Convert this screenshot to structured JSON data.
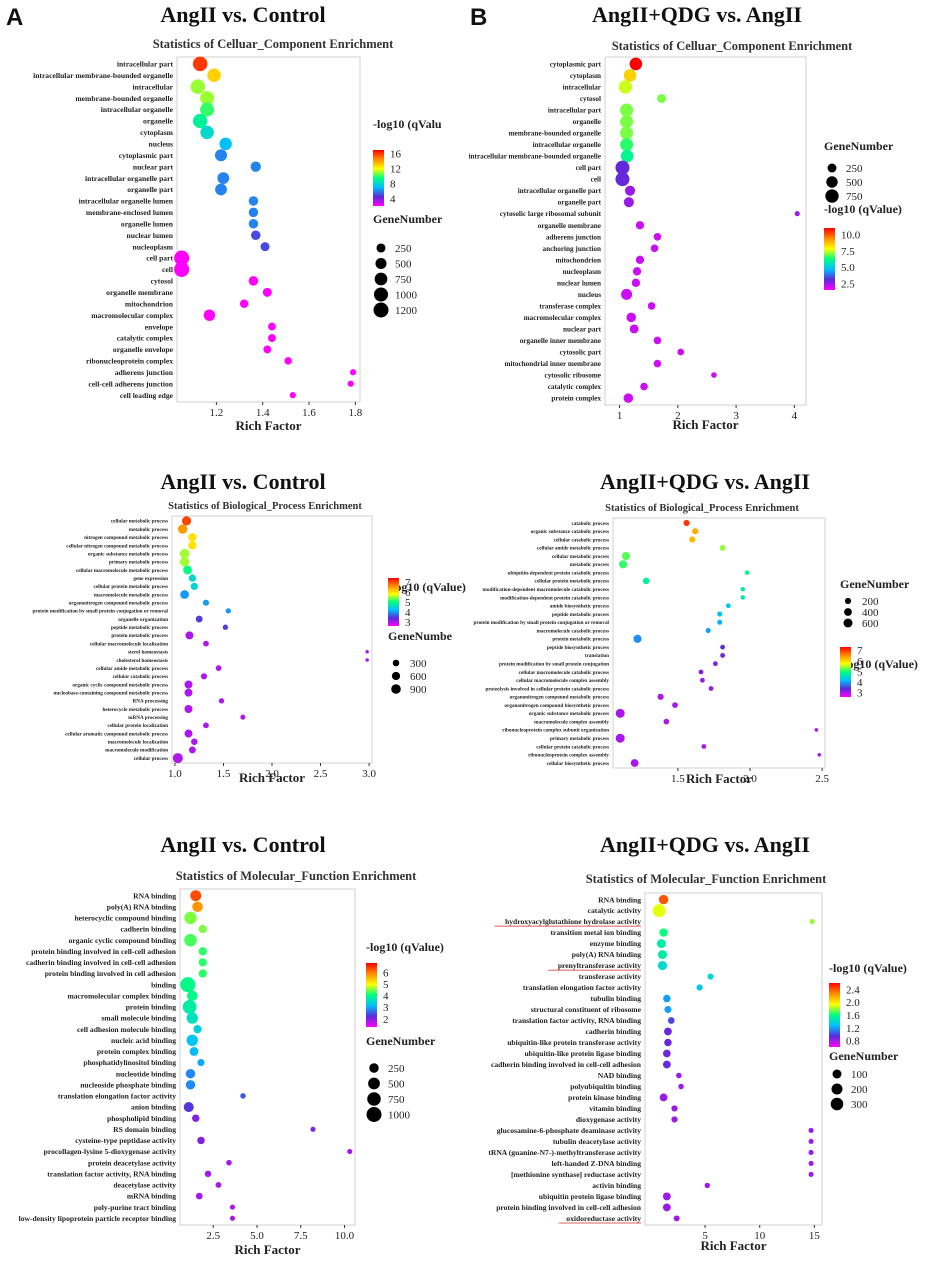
{
  "panel_letters": [
    "A",
    "B"
  ],
  "legend_labels": {
    "qvalue": "-log10 (qValue)",
    "qvalue_clipped": "-log10 (qValu",
    "genenumber": "GeneNumber",
    "genenumber_clipped": "GeneNumbe",
    "genenumber_clipped2": "GeneNumber"
  },
  "colors": {
    "scale": [
      "#ff0000",
      "#ff8c00",
      "#ffff00",
      "#00ff7f",
      "#00bfff",
      "#5a2bd8",
      "#ff00ff"
    ]
  },
  "chart_data": [
    {
      "id": "a1",
      "type": "scatter",
      "main_title": "AngII vs. Control",
      "title": "Statistics of Celluar_Component Enrichment",
      "xlabel": "Rich Factor",
      "xlim": [
        1.03,
        1.82
      ],
      "xticks": [
        1.2,
        1.4,
        1.6,
        1.8
      ],
      "xtick_labels": [
        "1.2",
        "1.4",
        "1.6",
        "1.8"
      ],
      "color_range": [
        2,
        17
      ],
      "color_ticks": [
        "16",
        "12",
        "8",
        "4"
      ],
      "color_tick_values": [
        16,
        12,
        8,
        4
      ],
      "size_labels": [
        "250",
        "500",
        "750",
        "1000",
        "1200"
      ],
      "size_values": [
        250,
        500,
        750,
        1000,
        1200
      ],
      "terms": [
        "intracellular part",
        "intracellular membrane-bounded organelle",
        "intracellular",
        "membrane-bounded organelle",
        "intracellular organelle",
        "organelle",
        "cytoplasm",
        "nucleus",
        "cytoplasmic part",
        "nuclear part",
        "intracellular organelle part",
        "organelle part",
        "intracellular organelle lumen",
        "membrane-enclosed lumen",
        "organelle lumen",
        "nuclear lumen",
        "nucleoplasm",
        "cell part",
        "cell",
        "cytosol",
        "organelle membrane",
        "mitochondrion",
        "macromolecular complex",
        "envelope",
        "catalytic complex",
        "organelle envelope",
        "ribonucleoprotein complex",
        "adherens junction",
        "cell-cell adherens junction",
        "cell leading edge"
      ],
      "x": [
        1.13,
        1.19,
        1.12,
        1.16,
        1.16,
        1.13,
        1.16,
        1.24,
        1.22,
        1.37,
        1.23,
        1.22,
        1.36,
        1.36,
        1.36,
        1.37,
        1.41,
        1.05,
        1.05,
        1.36,
        1.42,
        1.32,
        1.17,
        1.44,
        1.44,
        1.42,
        1.51,
        1.79,
        1.78,
        1.53
      ],
      "gene": [
        1100,
        900,
        1100,
        1000,
        1000,
        1050,
        900,
        700,
        650,
        400,
        600,
        600,
        300,
        300,
        300,
        300,
        250,
        1200,
        1200,
        300,
        250,
        200,
        550,
        150,
        150,
        150,
        120,
        50,
        50,
        50
      ],
      "q": [
        16,
        13,
        11,
        11,
        10,
        9,
        8,
        7,
        6,
        6,
        6,
        6,
        6,
        6,
        6,
        5,
        5,
        2,
        2,
        2,
        2,
        2,
        2,
        2,
        2,
        2,
        2,
        2,
        2,
        2
      ]
    },
    {
      "id": "b1",
      "type": "scatter",
      "main_title": "AngII+QDG vs. AngII",
      "title": "Statistics of Celluar_Component Enrichment",
      "xlabel": "Rich Factor",
      "xlim": [
        0.75,
        4.2
      ],
      "xticks": [
        1,
        2,
        3,
        4
      ],
      "xtick_labels": [
        "1",
        "2",
        "3",
        "4"
      ],
      "color_range": [
        1.5,
        11
      ],
      "color_ticks": [
        "10.0",
        "7.5",
        "5.0",
        "2.5"
      ],
      "color_tick_values": [
        10,
        7.5,
        5,
        2.5
      ],
      "size_labels": [
        "250",
        "500",
        "750"
      ],
      "size_values": [
        250,
        500,
        750
      ],
      "terms": [
        "cytoplasmic part",
        "cytoplasm",
        "intracellular",
        "cytosol",
        "intracellular part",
        "organelle",
        "membrane-bounded organelle",
        "intracellular organelle",
        "intracellular membrane-bounded organelle",
        "cell part",
        "cell",
        "intracellular organelle part",
        "organelle part",
        "cytosolic large ribosomal subunit",
        "organelle membrane",
        "adherens junction",
        "anchoring junction",
        "mitochondrion",
        "nucleoplasm",
        "nuclear lumen",
        "nucleus",
        "transferase complex",
        "macromolecular complex",
        "nuclear part",
        "organelle inner membrane",
        "cytosolic part",
        "mitochondrial inner membrane",
        "cytosolic ribosome",
        "catalytic complex",
        "protein complex"
      ],
      "x": [
        1.28,
        1.18,
        1.1,
        1.72,
        1.12,
        1.12,
        1.12,
        1.12,
        1.13,
        1.05,
        1.05,
        1.18,
        1.16,
        4.05,
        1.35,
        1.65,
        1.6,
        1.35,
        1.3,
        1.28,
        1.12,
        1.55,
        1.2,
        1.25,
        1.65,
        2.05,
        1.65,
        2.62,
        1.42,
        1.15
      ],
      "gene": [
        650,
        650,
        750,
        250,
        700,
        700,
        700,
        700,
        650,
        850,
        850,
        350,
        350,
        30,
        200,
        150,
        150,
        200,
        200,
        200,
        450,
        150,
        300,
        250,
        150,
        100,
        150,
        50,
        150,
        300
      ],
      "q": [
        11,
        8.5,
        7.5,
        7,
        7,
        7,
        7,
        6.5,
        6,
        3,
        3,
        2.5,
        2.5,
        2.5,
        2,
        2,
        2,
        2,
        2,
        2,
        2,
        2,
        2,
        2,
        2,
        2,
        2,
        2,
        2,
        2
      ]
    },
    {
      "id": "a2",
      "type": "scatter",
      "main_title": "AngII vs. Control",
      "title": "Statistics of Biological_Process Enrichment",
      "xlabel": "Rich Factor",
      "xlim": [
        0.97,
        3.03
      ],
      "xticks": [
        1.0,
        1.5,
        2.0,
        2.5,
        3.0
      ],
      "xtick_labels": [
        "1.0",
        "1.5",
        "2.0",
        "2.5",
        "3.0"
      ],
      "color_range": [
        2.6,
        7.4
      ],
      "color_ticks": [
        "7",
        "6",
        "5",
        "4",
        "3"
      ],
      "color_tick_values": [
        7,
        6,
        5,
        4,
        3
      ],
      "size_labels": [
        "300",
        "600",
        "900"
      ],
      "size_values": [
        300,
        600,
        900
      ],
      "terms": [
        "cellular metabolic process",
        "metabolic process",
        "nitrogen compound metabolic process",
        "cellular nitrogen compound metabolic process",
        "organic substance metabolic process",
        "primary metabolic process",
        "cellular macromolecule metabolic process",
        "gene expression",
        "cellular protein metabolic process",
        "macromolecule metabolic process",
        "organonitrogen compound metabolic process",
        "protein modification by small protein conjugation or removal",
        "organelle organization",
        "peptide metabolic process",
        "protein metabolic process",
        "cellular macromolecule localization",
        "sterol homeostasis",
        "cholesterol homeostasis",
        "cellular amide metabolic process",
        "cellular catabolic process",
        "organic cyclic compound metabolic process",
        "nucleobase-containing compound metabolic process",
        "RNA processing",
        "heterocycle metabolic process",
        "mRNA processing",
        "cellular protein localization",
        "cellular aromatic compound metabolic process",
        "macromolecule localization",
        "macromolecule modification",
        "cellular process"
      ],
      "x": [
        1.12,
        1.08,
        1.18,
        1.18,
        1.1,
        1.1,
        1.13,
        1.18,
        1.2,
        1.1,
        1.32,
        1.55,
        1.25,
        1.52,
        1.15,
        1.32,
        2.98,
        2.98,
        1.45,
        1.3,
        1.14,
        1.14,
        1.48,
        1.14,
        1.7,
        1.32,
        1.14,
        1.2,
        1.18,
        1.03
      ],
      "gene": [
        800,
        850,
        600,
        600,
        850,
        850,
        700,
        400,
        400,
        700,
        250,
        150,
        350,
        150,
        550,
        200,
        20,
        20,
        200,
        250,
        550,
        550,
        150,
        550,
        120,
        200,
        550,
        300,
        350,
        1000
      ],
      "q": [
        7,
        6.5,
        6,
        6,
        5.5,
        5.5,
        5,
        4.5,
        4.5,
        4,
        4,
        4,
        3.5,
        3.5,
        3,
        3,
        3,
        3,
        3,
        3,
        3,
        3,
        3,
        3,
        3,
        3,
        3,
        3,
        3,
        3
      ]
    },
    {
      "id": "b2",
      "type": "scatter",
      "main_title": "AngII+QDG vs. AngII",
      "title": "Statistics of Biological_Process Enrichment",
      "xlabel": "Rich Factor",
      "xlim": [
        1.05,
        2.52
      ],
      "xticks": [
        1.5,
        2.0,
        2.5
      ],
      "xtick_labels": [
        "1.5",
        "2.0",
        "2.5"
      ],
      "color_range": [
        2.6,
        7.3
      ],
      "color_ticks": [
        "7",
        "6",
        "5",
        "4",
        "3"
      ],
      "color_tick_values": [
        7,
        6,
        5,
        4,
        3
      ],
      "size_labels": [
        "200",
        "400",
        "600"
      ],
      "size_values": [
        200,
        400,
        600
      ],
      "terms": [
        "catabolic process",
        "organic substance catabolic process",
        "cellular catabolic process",
        "cellular amide metabolic process",
        "cellular metabolic process",
        "metabolic process",
        "ubiquitin-dependent protein catabolic process",
        "cellular protein metabolic process",
        "modification-dependent macromolecule catabolic process",
        "modification-dependent protein catabolic process",
        "amide biosynthetic process",
        "peptide metabolic process",
        "protein modification by small protein conjugation or removal",
        "macromolecule catabolic process",
        "protein metabolic process",
        "peptide biosynthetic process",
        "translation",
        "protein modification by small protein conjugation",
        "cellular macromolecule catabolic process",
        "cellular macromolecule complex assembly",
        "proteolysis involved in cellular protein catabolic process",
        "organonitrogen compound metabolic process",
        "organonitrogen compound biosynthetic process",
        "organic substance metabolic process",
        "macromolecule complex assembly",
        "ribonucleoprotein complex subunit organization",
        "primary metabolic process",
        "cellular protein catabolic process",
        "ribonucleoprotein complex assembly",
        "cellular biosynthetic process"
      ],
      "x": [
        1.56,
        1.62,
        1.6,
        1.81,
        1.14,
        1.12,
        1.98,
        1.28,
        1.95,
        1.95,
        1.85,
        1.79,
        1.79,
        1.71,
        1.22,
        1.81,
        1.81,
        1.76,
        1.66,
        1.67,
        1.73,
        1.38,
        1.48,
        1.1,
        1.42,
        2.46,
        1.1,
        1.68,
        2.48,
        1.2
      ],
      "gene": [
        200,
        200,
        200,
        150,
        450,
        450,
        60,
        250,
        60,
        60,
        80,
        100,
        100,
        100,
        450,
        80,
        80,
        80,
        80,
        80,
        80,
        200,
        150,
        600,
        150,
        20,
        600,
        80,
        20,
        400
      ],
      "q": [
        7,
        6.3,
        6.2,
        5.4,
        5.2,
        5.1,
        4.9,
        4.8,
        4.7,
        4.6,
        4.3,
        4.2,
        4.1,
        4,
        3.9,
        3.4,
        3.3,
        3.2,
        3.2,
        3.1,
        3.1,
        3,
        3,
        3,
        3,
        3,
        3,
        3,
        3,
        3
      ]
    },
    {
      "id": "a3",
      "type": "scatter",
      "main_title": "AngII vs. Control",
      "title": "Statistics of Molecular_Function Enrichment",
      "xlabel": "Rich Factor",
      "xlim": [
        0.6,
        10.6
      ],
      "xticks": [
        2.5,
        5.0,
        7.5,
        10.0
      ],
      "xtick_labels": [
        "2.5",
        "5.0",
        "7.5",
        "10.0"
      ],
      "color_range": [
        1.3,
        6.8
      ],
      "color_ticks": [
        "6",
        "5",
        "4",
        "3",
        "2"
      ],
      "color_tick_values": [
        6,
        5,
        4,
        3,
        2
      ],
      "size_labels": [
        "250",
        "500",
        "750",
        "1000"
      ],
      "size_values": [
        250,
        500,
        750,
        1000
      ],
      "terms": [
        "RNA binding",
        "poly(A) RNA binding",
        "heterocyclic compound binding",
        "cadherin binding",
        "organic cyclic compound binding",
        "protein binding involved in cell-cell adhesion",
        "cadherin binding involved in cell-cell adhesion",
        "protein binding involved in cell adhesion",
        "binding",
        "macromolecular complex binding",
        "protein binding",
        "small molecule binding",
        "cell adhesion molecule binding",
        "nucleic acid binding",
        "protein complex binding",
        "phosphatidylinositol binding",
        "nucleotide binding",
        "nucleoside phosphate binding",
        "translation elongation factor activity",
        "anion binding",
        "phospholipid binding",
        "RS domain binding",
        "cysteine-type peptidase activity",
        "procollagen-lysine 5-dioxygenase activity",
        "protein deacetylase activity",
        "translation factor activity, RNA binding",
        "deacetylase activity",
        "mRNA binding",
        "poly-purine tract binding",
        "low-density lipoprotein particle receptor binding"
      ],
      "x": [
        1.5,
        1.6,
        1.2,
        1.9,
        1.2,
        1.9,
        1.9,
        1.9,
        1.05,
        1.3,
        1.15,
        1.3,
        1.6,
        1.3,
        1.4,
        1.8,
        1.2,
        1.2,
        4.2,
        1.1,
        1.5,
        8.2,
        1.8,
        10.3,
        3.4,
        2.2,
        2.8,
        1.7,
        3.6,
        3.6
      ],
      "gene": [
        400,
        350,
        600,
        150,
        600,
        150,
        150,
        150,
        1000,
        350,
        800,
        450,
        150,
        450,
        200,
        80,
        250,
        250,
        20,
        300,
        100,
        10,
        100,
        10,
        20,
        50,
        30,
        60,
        10,
        10
      ],
      "q": [
        6.3,
        5.8,
        4.5,
        4.5,
        4.3,
        4.2,
        4.2,
        4.2,
        4,
        4,
        3.8,
        3.6,
        3.4,
        3.2,
        3.1,
        3,
        2.8,
        2.8,
        2.5,
        2.3,
        2,
        2,
        2,
        1.8,
        1.8,
        1.8,
        1.8,
        1.8,
        1.8,
        1.8
      ]
    },
    {
      "id": "b3",
      "type": "scatter",
      "main_title": "AngII+QDG vs. AngII",
      "title": "Statistics of Molecular_Function Enrichment",
      "xlabel": "Rich Factor",
      "xlim": [
        -0.5,
        15.7
      ],
      "xticks": [
        5,
        10,
        15
      ],
      "xtick_labels": [
        "5",
        "10",
        "15"
      ],
      "color_range": [
        0.6,
        2.6
      ],
      "color_ticks": [
        "2.4",
        "2.0",
        "1.6",
        "1.2",
        "0.8"
      ],
      "color_tick_values": [
        2.4,
        2,
        1.6,
        1.2,
        0.8
      ],
      "size_labels": [
        "100",
        "200",
        "300"
      ],
      "size_values": [
        100,
        200,
        300
      ],
      "terms": [
        "RNA binding",
        "catalytic activity",
        "hydroxyacylglutathione hydrolase activity",
        "transition metal ion binding",
        "enzyme binding",
        "poly(A) RNA binding",
        "prenyltransferase activity",
        "transferase activity",
        "translation elongation factor activity",
        "tubulin binding",
        "structural constituent of ribosome",
        "translation factor activity, RNA binding",
        "cadherin binding",
        "ubiquitin-like protein transferase activity",
        "ubiquitin-like protein ligase binding",
        "cadherin binding involved in cell-cell adhesion",
        "NAD binding",
        "polyubiquitin binding",
        "protein kinase binding",
        "vitamin binding",
        "dioxygenase activity",
        "glucosamine-6-phosphate deaminase activity",
        "tubulin deacetylase activity",
        "tRNA (guanine-N7-)-methyltransferase activity",
        "left-handed Z-DNA binding",
        "[methionine synthase] reductase activity",
        "activin binding",
        "ubiquitin protein ligase binding",
        "protein binding involved in cell-cell adhesion",
        "oxidoreductase activity"
      ],
      "x": [
        1.2,
        0.8,
        14.8,
        1.2,
        1,
        1.1,
        1.1,
        5.5,
        4.5,
        1.5,
        1.6,
        1.9,
        1.6,
        1.6,
        1.5,
        1.5,
        2.6,
        2.8,
        1.2,
        2.2,
        2.2,
        14.7,
        14.7,
        14.7,
        14.7,
        14.7,
        5.2,
        1.5,
        1.5,
        2.4
      ],
      "gene": [
        120,
        330,
        5,
        80,
        100,
        100,
        110,
        20,
        20,
        50,
        40,
        30,
        60,
        50,
        55,
        60,
        10,
        10,
        60,
        20,
        20,
        5,
        5,
        5,
        5,
        5,
        8,
        60,
        60,
        15
      ],
      "q": [
        2.4,
        1.9,
        1.8,
        1.6,
        1.5,
        1.5,
        1.4,
        1.4,
        1.3,
        1.2,
        1.2,
        1,
        0.9,
        0.9,
        0.9,
        0.9,
        0.8,
        0.8,
        0.8,
        0.8,
        0.8,
        0.8,
        0.8,
        0.8,
        0.8,
        0.8,
        0.8,
        0.8,
        0.8,
        0.8
      ],
      "underlined_terms": [
        2,
        6,
        29
      ]
    }
  ]
}
